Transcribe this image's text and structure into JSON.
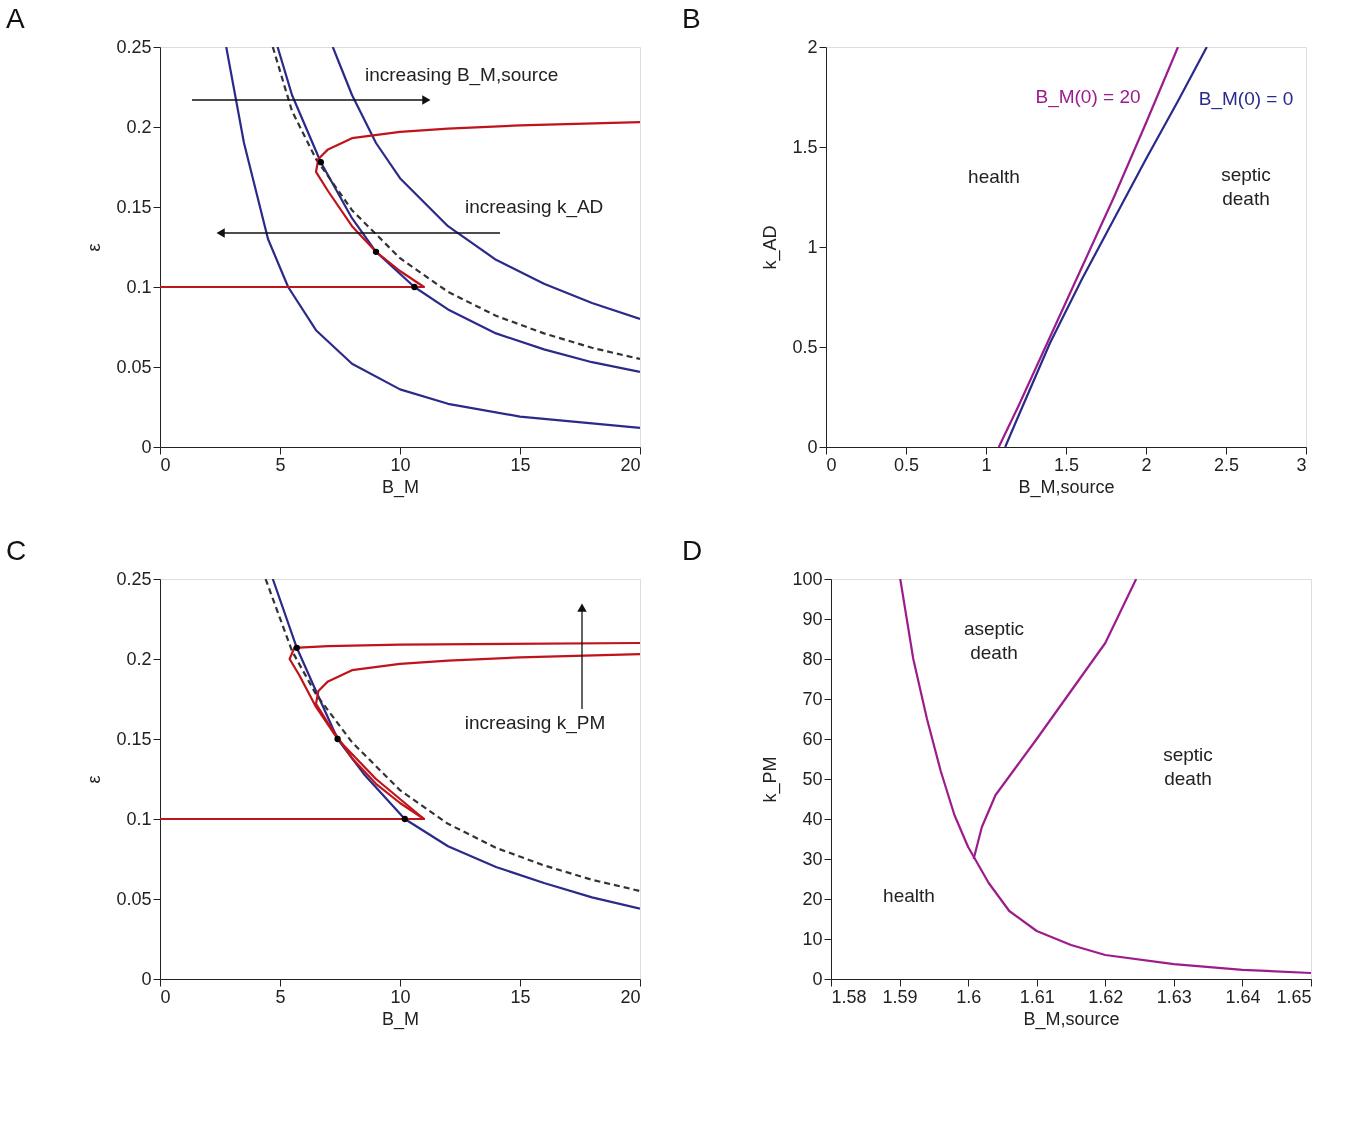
{
  "chart_data": [
    {
      "type": "line",
      "title": "A",
      "xlabel": "B_M",
      "ylabel": "ε",
      "xlim": [
        0,
        20
      ],
      "ylim": [
        0,
        0.25
      ],
      "xticks": [
        0,
        5,
        10,
        15,
        20
      ],
      "yticks": [
        0,
        0.05,
        0.1,
        0.15,
        0.2,
        0.25
      ],
      "annotations": [
        "increasing B_M,source",
        "increasing k_AD"
      ],
      "series": [
        {
          "color": "#2a2a8a",
          "x": [
            2.76,
            3.5,
            4.5,
            5.34,
            6.5,
            8,
            10,
            12,
            15,
            20
          ],
          "values": [
            0.25,
            0.19,
            0.13,
            0.1,
            0.073,
            0.052,
            0.036,
            0.027,
            0.019,
            0.012
          ]
        },
        {
          "color": "#2a2a8a",
          "x": [
            4.9,
            5.5,
            6.7,
            8,
            9,
            10.6,
            12,
            14,
            16,
            18,
            20
          ],
          "values": [
            0.25,
            0.22,
            0.178,
            0.143,
            0.122,
            0.1,
            0.086,
            0.071,
            0.061,
            0.053,
            0.047
          ]
        },
        {
          "color": "#2a2a8a",
          "x": [
            7.2,
            8,
            9,
            10,
            12,
            14,
            16,
            18,
            20
          ],
          "values": [
            0.25,
            0.22,
            0.19,
            0.168,
            0.138,
            0.117,
            0.102,
            0.09,
            0.08
          ]
        },
        {
          "color": "#333333",
          "line_style": "dashed",
          "x": [
            4.7,
            5.5,
            6.5,
            8,
            10,
            12,
            14,
            16,
            18,
            20
          ],
          "values": [
            0.25,
            0.21,
            0.18,
            0.148,
            0.118,
            0.097,
            0.082,
            0.071,
            0.062,
            0.055
          ]
        },
        {
          "color": "#c0141c",
          "x": [
            0,
            11,
            10,
            9,
            8,
            7,
            6.5,
            6.6,
            7,
            8,
            10,
            12,
            15,
            20
          ],
          "values": [
            0.1,
            0.1,
            0.11,
            0.122,
            0.138,
            0.16,
            0.172,
            0.18,
            0.186,
            0.193,
            0.197,
            0.199,
            0.201,
            0.203
          ]
        },
        {
          "type": "scatter",
          "color": "#000000",
          "x": [
            6.7,
            9,
            10.6
          ],
          "values": [
            0.178,
            0.122,
            0.1
          ]
        }
      ]
    },
    {
      "type": "line",
      "title": "B",
      "xlabel": "B_M,source",
      "ylabel": "k_AD",
      "xlim": [
        0,
        3
      ],
      "ylim": [
        0,
        2
      ],
      "xticks": [
        0,
        0.5,
        1,
        1.5,
        2,
        2.5,
        3
      ],
      "yticks": [
        0,
        0.5,
        1,
        1.5,
        2
      ],
      "annotations": [
        "health",
        "septic\ndeath"
      ],
      "series": [
        {
          "name": "B_M(0) = 20",
          "color": "#9c1c8c",
          "x": [
            1.08,
            1.2,
            1.4,
            1.6,
            1.8,
            2.0,
            2.2
          ],
          "values": [
            0,
            0.2,
            0.55,
            0.9,
            1.25,
            1.62,
            2.0
          ]
        },
        {
          "name": "B_M(0) = 0",
          "color": "#2a2a8a",
          "x": [
            1.12,
            1.2,
            1.4,
            1.6,
            1.8,
            2.0,
            2.2,
            2.38
          ],
          "values": [
            0,
            0.15,
            0.52,
            0.84,
            1.14,
            1.44,
            1.73,
            2.0
          ]
        }
      ]
    },
    {
      "type": "line",
      "title": "C",
      "xlabel": "B_M",
      "ylabel": "ε",
      "xlim": [
        0,
        20
      ],
      "ylim": [
        0,
        0.25
      ],
      "xticks": [
        0,
        5,
        10,
        15,
        20
      ],
      "yticks": [
        0,
        0.05,
        0.1,
        0.15,
        0.2,
        0.25
      ],
      "annotations": [
        "increasing k_PM"
      ],
      "series": [
        {
          "color": "#2a2a8a",
          "x": [
            4.7,
            5.7,
            6.5,
            7.4,
            8.5,
            10.2,
            12,
            14,
            16,
            18,
            20
          ],
          "values": [
            0.25,
            0.207,
            0.18,
            0.15,
            0.128,
            0.1,
            0.083,
            0.07,
            0.06,
            0.051,
            0.044
          ]
        },
        {
          "color": "#333333",
          "line_style": "dashed",
          "x": [
            4.4,
            5.5,
            6.5,
            8,
            10,
            12,
            14,
            16,
            18,
            20
          ],
          "values": [
            0.25,
            0.205,
            0.178,
            0.148,
            0.118,
            0.097,
            0.082,
            0.071,
            0.062,
            0.055
          ]
        },
        {
          "color": "#c0141c",
          "x": [
            0,
            11,
            10,
            9,
            8,
            7,
            6.5,
            6.6,
            7,
            8,
            10,
            12,
            15,
            20
          ],
          "values": [
            0.1,
            0.1,
            0.11,
            0.122,
            0.138,
            0.16,
            0.172,
            0.18,
            0.186,
            0.193,
            0.197,
            0.199,
            0.201,
            0.203
          ]
        },
        {
          "color": "#c0141c",
          "x": [
            0,
            11,
            9,
            7.4,
            6.5,
            5.8,
            5.4,
            5.6,
            7,
            10,
            20
          ],
          "values": [
            0.1,
            0.1,
            0.125,
            0.15,
            0.17,
            0.19,
            0.2,
            0.207,
            0.208,
            0.209,
            0.21
          ]
        },
        {
          "type": "scatter",
          "color": "#000000",
          "x": [
            5.7,
            7.4,
            10.2
          ],
          "values": [
            0.207,
            0.15,
            0.1
          ]
        }
      ]
    },
    {
      "type": "line",
      "title": "D",
      "xlabel": "B_M,source",
      "ylabel": "k_PM",
      "xlim": [
        1.58,
        1.65
      ],
      "ylim": [
        0,
        100
      ],
      "xticks": [
        1.58,
        1.59,
        1.6,
        1.61,
        1.62,
        1.63,
        1.64,
        1.65
      ],
      "yticks": [
        0,
        10,
        20,
        30,
        40,
        50,
        60,
        70,
        80,
        90,
        100
      ],
      "annotations": [
        "aseptic\ndeath",
        "septic\ndeath",
        "health"
      ],
      "series": [
        {
          "color": "#9c1c8c",
          "x": [
            1.5901,
            1.592,
            1.594,
            1.596,
            1.598,
            1.6,
            1.603,
            1.606,
            1.61,
            1.615,
            1.62,
            1.63,
            1.64,
            1.65
          ],
          "values": [
            100,
            80,
            65,
            52,
            41,
            33,
            24,
            17,
            12,
            8.5,
            6,
            3.7,
            2.3,
            1.5
          ]
        },
        {
          "color": "#9c1c8c",
          "x": [
            1.6008,
            1.602,
            1.604,
            1.607,
            1.61,
            1.615,
            1.62,
            1.6245
          ],
          "values": [
            30,
            38,
            46,
            53,
            60,
            72,
            84,
            100
          ]
        }
      ]
    }
  ]
}
